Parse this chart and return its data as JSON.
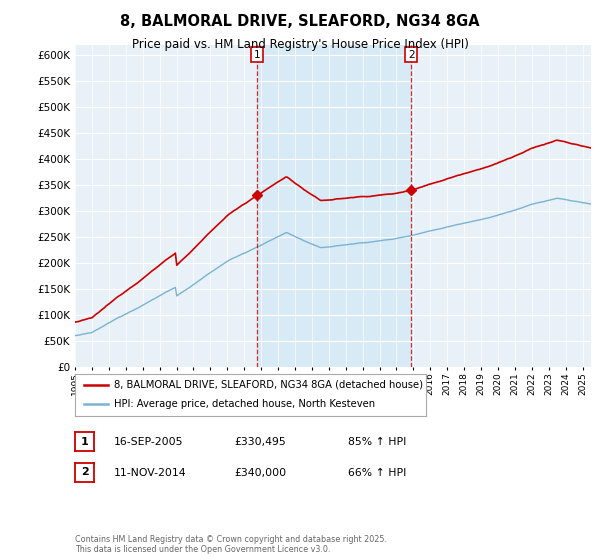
{
  "title": "8, BALMORAL DRIVE, SLEAFORD, NG34 8GA",
  "subtitle": "Price paid vs. HM Land Registry's House Price Index (HPI)",
  "ylim": [
    0,
    620000
  ],
  "yticks": [
    0,
    50000,
    100000,
    150000,
    200000,
    250000,
    300000,
    350000,
    400000,
    450000,
    500000,
    550000,
    600000
  ],
  "ytick_labels": [
    "£0",
    "£50K",
    "£100K",
    "£150K",
    "£200K",
    "£250K",
    "£300K",
    "£350K",
    "£400K",
    "£450K",
    "£500K",
    "£550K",
    "£600K"
  ],
  "xlim": [
    1995,
    2025.5
  ],
  "hpi_color": "#7ab3d4",
  "price_color": "#cc0000",
  "shade_color": "#d8eaf5",
  "marker1_year": 2005.75,
  "marker2_year": 2014.875,
  "legend_label1": "8, BALMORAL DRIVE, SLEAFORD, NG34 8GA (detached house)",
  "legend_label2": "HPI: Average price, detached house, North Kesteven",
  "table_row1": [
    "1",
    "16-SEP-2005",
    "£330,495",
    "85% ↑ HPI"
  ],
  "table_row2": [
    "2",
    "11-NOV-2014",
    "£340,000",
    "66% ↑ HPI"
  ],
  "footnote": "Contains HM Land Registry data © Crown copyright and database right 2025.\nThis data is licensed under the Open Government Licence v3.0.",
  "bg_color": "#ffffff",
  "plot_bg_color": "#e8f0f8",
  "grid_color": "#c8d8e8"
}
